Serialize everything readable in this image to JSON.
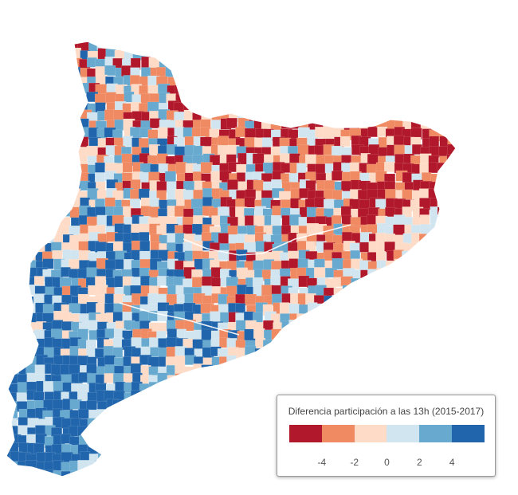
{
  "map": {
    "region": "Catalonia municipalities choropleth",
    "palette": [
      "#b2182b",
      "#ef8a62",
      "#fddbc7",
      "#d1e5f0",
      "#67a9cf",
      "#2166ac"
    ],
    "class_breaks": [
      -4,
      -2,
      0,
      2,
      4
    ],
    "dominant_patterns": {
      "north_east": "mostly strong negative (dark red)",
      "south_west": "mostly positive (blue)",
      "coast": "mixed, light tones"
    }
  },
  "legend": {
    "title": "Diferencia participación a las 13h (2015-2017)",
    "ticks": [
      "-4",
      "-2",
      "0",
      "2",
      "4"
    ]
  }
}
